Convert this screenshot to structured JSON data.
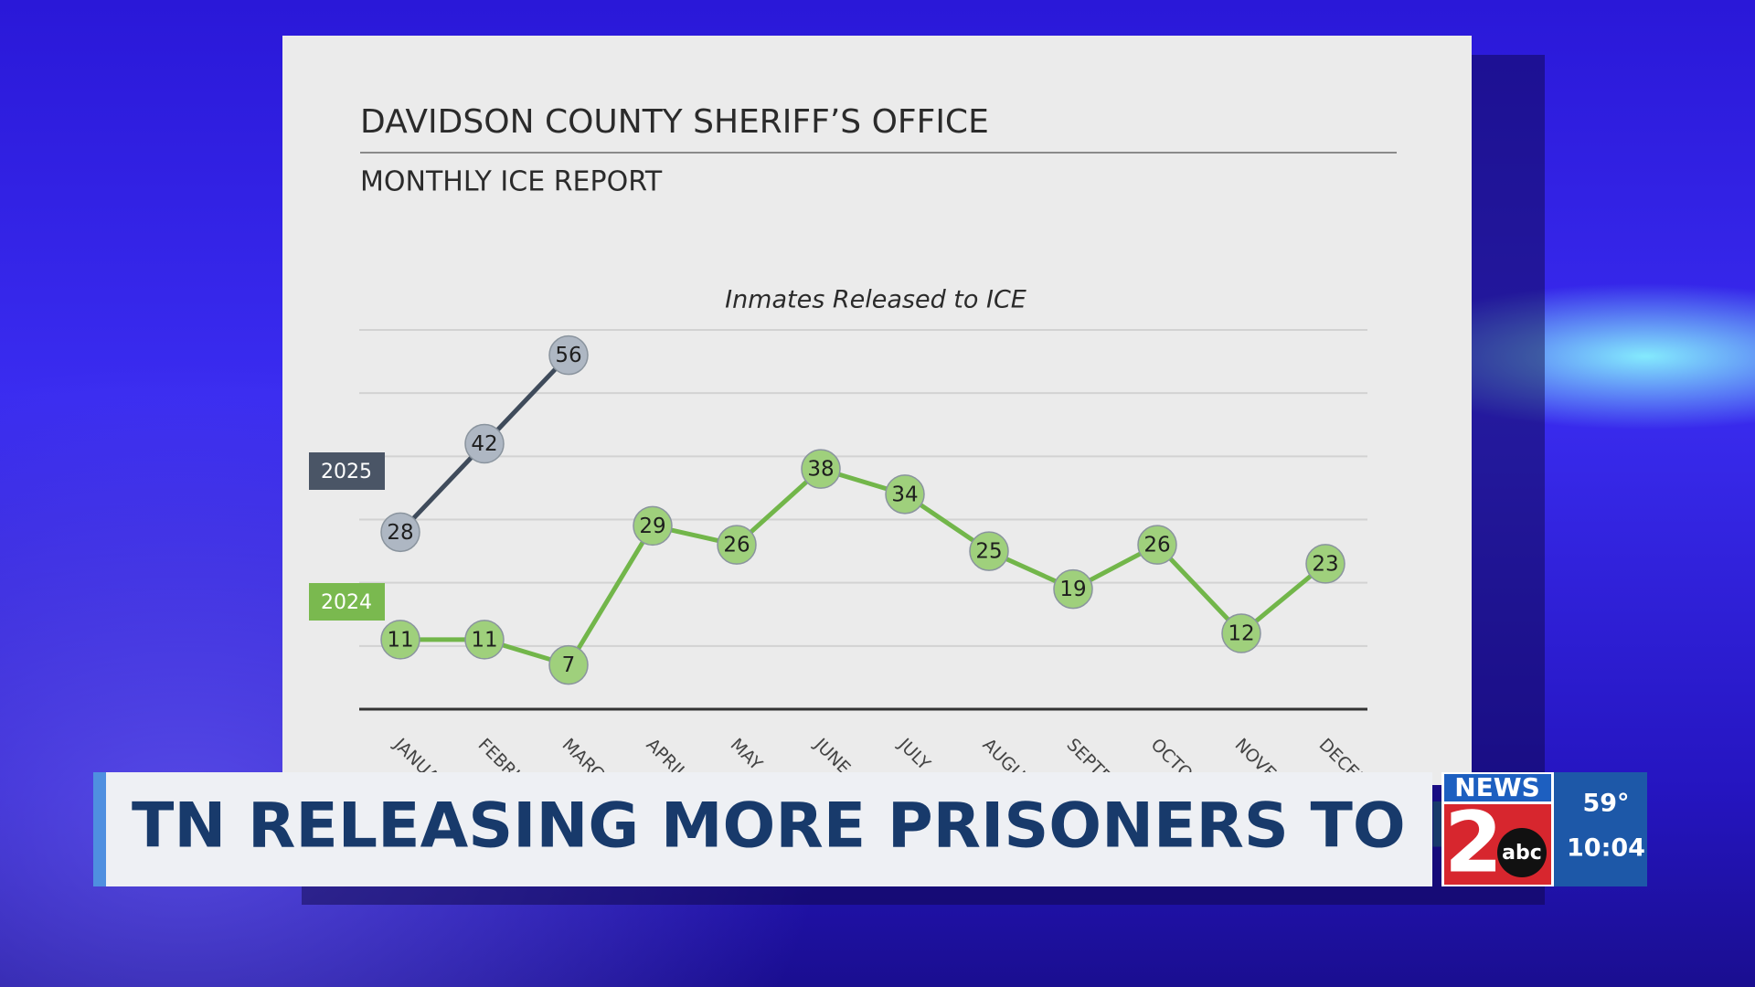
{
  "chart_data": {
    "type": "line",
    "title": "DAVIDSON COUNTY SHERIFF’S OFFICE",
    "subtitle": "MONTHLY ICE REPORT",
    "chart_title": "Inmates Released to ICE",
    "categories": [
      "JANUARY",
      "FEBRUARY",
      "MARCH",
      "APRIL",
      "MAY",
      "JUNE",
      "JULY",
      "AUGUST",
      "SEPTEMBER",
      "OCTOBER",
      "NOVEMBER",
      "DECEMBER"
    ],
    "series": [
      {
        "name": "2025",
        "color": "#aeb7c3",
        "line_color": "#3f4b5b",
        "label_color": "#4a5566",
        "values": [
          28,
          42,
          56,
          null,
          null,
          null,
          null,
          null,
          null,
          null,
          null,
          null
        ]
      },
      {
        "name": "2024",
        "color": "#9fd07c",
        "line_color": "#72b64a",
        "label_color": "#7ab94f",
        "values": [
          11,
          11,
          7,
          29,
          26,
          38,
          34,
          25,
          19,
          26,
          12,
          23
        ]
      }
    ],
    "ylim": [
      0,
      60
    ],
    "yticks": [
      0,
      10,
      20,
      30,
      40,
      50,
      60
    ],
    "grid": true
  },
  "overlay": {
    "headline": "TN RELEASING MORE PRISONERS TO ICE",
    "logo_news": "NEWS",
    "logo_number": "2",
    "logo_network": "abc",
    "temperature": "59°",
    "time": "10:04"
  }
}
